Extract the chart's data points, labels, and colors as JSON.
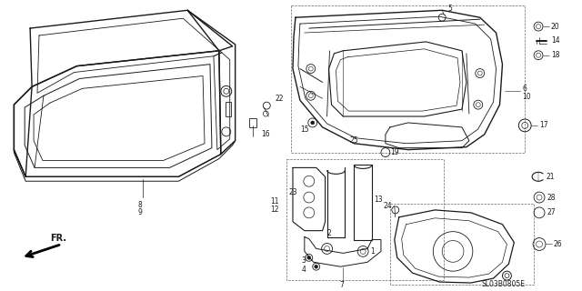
{
  "bg_color": "#ffffff",
  "fig_width": 6.4,
  "fig_height": 3.2,
  "line_color": "#1a1a1a",
  "label_color": "#1a1a1a",
  "label_fontsize": 5.5,
  "diagram_code": "SL03B0805E",
  "dpi": 100
}
